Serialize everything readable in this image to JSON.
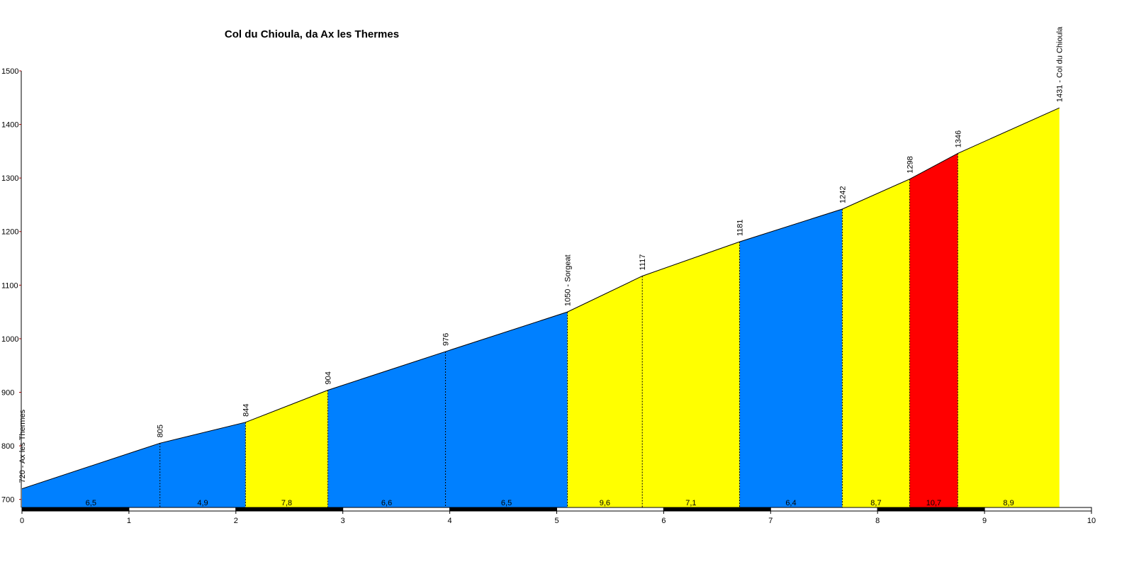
{
  "chart_data": {
    "type": "profile",
    "title": "Col du Chioula, da Ax les Thermes",
    "points": [
      {
        "km": 0,
        "elevation": 720,
        "label": "720 - Ax les Thermes"
      },
      {
        "km": 1.29,
        "elevation": 805
      },
      {
        "km": 2.09,
        "elevation": 844
      },
      {
        "km": 2.86,
        "elevation": 904
      },
      {
        "km": 3.96,
        "elevation": 976
      },
      {
        "km": 5.1,
        "elevation": 1050,
        "label": "1050 - Sorgeat"
      },
      {
        "km": 5.8,
        "elevation": 1117
      },
      {
        "km": 6.71,
        "elevation": 1181
      },
      {
        "km": 7.67,
        "elevation": 1242
      },
      {
        "km": 8.3,
        "elevation": 1298
      },
      {
        "km": 8.75,
        "elevation": 1346
      },
      {
        "km": 9.7,
        "elevation": 1431,
        "label": "1431 - Col du Chioula"
      }
    ],
    "segments": [
      {
        "gradient": {
          "value": 6.5,
          "label": "6,5"
        },
        "color": "#0080ff"
      },
      {
        "gradient": {
          "value": 4.9,
          "label": "4,9"
        },
        "color": "#0080ff"
      },
      {
        "gradient": {
          "value": 7.8,
          "label": "7,8"
        },
        "color": "#ffff00"
      },
      {
        "gradient": {
          "value": 6.6,
          "label": "6,6"
        },
        "color": "#0080ff"
      },
      {
        "gradient": {
          "value": 6.5,
          "label": "6,5"
        },
        "color": "#0080ff"
      },
      {
        "gradient": {
          "value": 9.6,
          "label": "9,6"
        },
        "color": "#ffff00"
      },
      {
        "gradient": {
          "value": 7.1,
          "label": "7,1"
        },
        "color": "#ffff00"
      },
      {
        "gradient": {
          "value": 6.4,
          "label": "6,4"
        },
        "color": "#0080ff"
      },
      {
        "gradient": {
          "value": 8.7,
          "label": "8,7"
        },
        "color": "#ffff00"
      },
      {
        "gradient": {
          "value": 10.7,
          "label": "10,7"
        },
        "color": "#ff0000"
      },
      {
        "gradient": {
          "value": 8.9,
          "label": "8,9"
        },
        "color": "#ffff00"
      }
    ],
    "xlim": [
      0,
      10
    ],
    "xticks": [
      0,
      1,
      2,
      3,
      4,
      5,
      6,
      7,
      8,
      9,
      10
    ],
    "ylim": [
      685,
      1500
    ],
    "yticks": [
      700,
      800,
      900,
      1000,
      1100,
      1200,
      1300,
      1400,
      1500
    ]
  }
}
